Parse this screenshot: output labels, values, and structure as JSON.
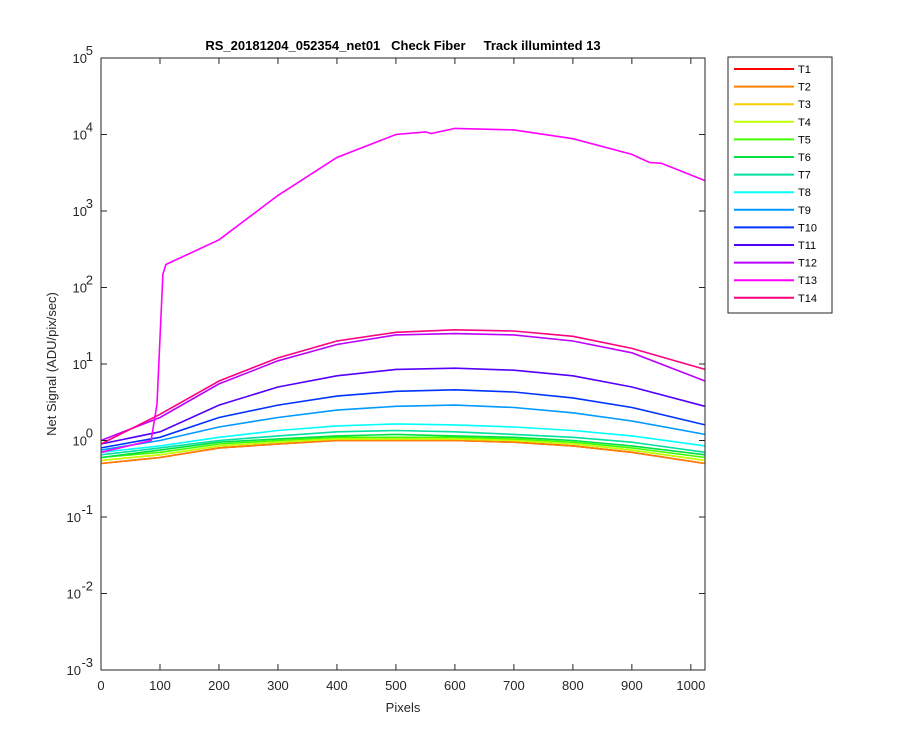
{
  "chart_data": {
    "type": "line",
    "title": "RS_20181204_052354_net01   Check Fiber     Track illuminted 13",
    "xlabel": "Pixels",
    "ylabel": "Net Signal (ADU/pix/sec)",
    "xlim": [
      0,
      1024
    ],
    "ylim": [
      0.001,
      100000
    ],
    "yscale": "log",
    "grid": false,
    "legend_position": "outside-right",
    "x_ticks": [
      0,
      100,
      200,
      300,
      400,
      500,
      600,
      700,
      800,
      900,
      1000
    ],
    "x_tick_labels": [
      "0",
      "100",
      "200",
      "300",
      "400",
      "500",
      "600",
      "700",
      "800",
      "900",
      "1000"
    ],
    "y_ticks": [
      0.001,
      0.01,
      0.1,
      1,
      10,
      100,
      1000,
      10000,
      100000
    ],
    "y_tick_exponents": [
      "-3",
      "-2",
      "-1",
      "0",
      "1",
      "2",
      "3",
      "4",
      "5"
    ],
    "y_tick_base": "10",
    "series": [
      {
        "name": "T1",
        "color": "#ff0000",
        "x": [
          0,
          100,
          200,
          300,
          400,
          500,
          600,
          700,
          800,
          900,
          1024
        ],
        "y": [
          0.5,
          0.6,
          0.8,
          0.9,
          1.0,
          1.0,
          1.0,
          0.95,
          0.85,
          0.7,
          0.5
        ]
      },
      {
        "name": "T2",
        "color": "#ff7f00",
        "x": [
          0,
          100,
          200,
          300,
          400,
          500,
          600,
          700,
          800,
          900,
          1024
        ],
        "y": [
          0.5,
          0.6,
          0.8,
          0.9,
          1.0,
          1.0,
          1.0,
          0.95,
          0.85,
          0.7,
          0.5
        ]
      },
      {
        "name": "T3",
        "color": "#ffcc00",
        "x": [
          0,
          100,
          200,
          300,
          400,
          500,
          600,
          700,
          800,
          900,
          1024
        ],
        "y": [
          0.55,
          0.65,
          0.85,
          0.95,
          1.05,
          1.05,
          1.05,
          1.0,
          0.9,
          0.75,
          0.55
        ]
      },
      {
        "name": "T4",
        "color": "#bfff00",
        "x": [
          0,
          100,
          200,
          300,
          400,
          500,
          600,
          700,
          800,
          900,
          1024
        ],
        "y": [
          0.55,
          0.65,
          0.85,
          0.95,
          1.05,
          1.05,
          1.05,
          1.0,
          0.9,
          0.75,
          0.55
        ]
      },
      {
        "name": "T5",
        "color": "#40ff00",
        "x": [
          0,
          100,
          200,
          300,
          400,
          500,
          600,
          700,
          800,
          900,
          1024
        ],
        "y": [
          0.6,
          0.7,
          0.9,
          1.0,
          1.1,
          1.1,
          1.1,
          1.05,
          0.95,
          0.8,
          0.6
        ]
      },
      {
        "name": "T6",
        "color": "#00e040",
        "x": [
          0,
          100,
          200,
          300,
          400,
          500,
          600,
          700,
          800,
          900,
          1024
        ],
        "y": [
          0.6,
          0.75,
          0.95,
          1.05,
          1.15,
          1.2,
          1.15,
          1.1,
          1.0,
          0.85,
          0.65
        ]
      },
      {
        "name": "T7",
        "color": "#00e0a0",
        "x": [
          0,
          100,
          200,
          300,
          400,
          500,
          600,
          700,
          800,
          900,
          1024
        ],
        "y": [
          0.65,
          0.8,
          1.0,
          1.15,
          1.3,
          1.35,
          1.3,
          1.2,
          1.1,
          0.95,
          0.7
        ]
      },
      {
        "name": "T8",
        "color": "#00ffff",
        "x": [
          0,
          100,
          200,
          300,
          400,
          500,
          600,
          700,
          800,
          900,
          1024
        ],
        "y": [
          0.7,
          0.85,
          1.1,
          1.35,
          1.55,
          1.65,
          1.6,
          1.5,
          1.35,
          1.15,
          0.85
        ]
      },
      {
        "name": "T9",
        "color": "#0099ff",
        "x": [
          0,
          100,
          200,
          300,
          400,
          500,
          600,
          700,
          800,
          900,
          1024
        ],
        "y": [
          0.75,
          1.0,
          1.5,
          2.0,
          2.5,
          2.8,
          2.9,
          2.7,
          2.3,
          1.8,
          1.2
        ]
      },
      {
        "name": "T10",
        "color": "#0033ff",
        "x": [
          0,
          100,
          200,
          300,
          400,
          500,
          600,
          700,
          800,
          900,
          1024
        ],
        "y": [
          0.8,
          1.1,
          2.0,
          2.9,
          3.8,
          4.4,
          4.6,
          4.3,
          3.6,
          2.7,
          1.6
        ]
      },
      {
        "name": "T11",
        "color": "#5500ff",
        "x": [
          0,
          100,
          200,
          300,
          400,
          500,
          600,
          700,
          800,
          900,
          1024
        ],
        "y": [
          0.9,
          1.3,
          2.9,
          5.0,
          7.0,
          8.5,
          8.8,
          8.3,
          7.0,
          5.0,
          2.8
        ]
      },
      {
        "name": "T12",
        "color": "#bb00ff",
        "x": [
          0,
          100,
          200,
          300,
          400,
          500,
          600,
          700,
          800,
          900,
          1024
        ],
        "y": [
          1.0,
          2.0,
          5.5,
          11,
          18,
          24,
          25,
          24,
          20,
          14,
          6
        ]
      },
      {
        "name": "T13",
        "color": "#ff00ff",
        "x": [
          0,
          85,
          95,
          105,
          110,
          200,
          300,
          400,
          500,
          550,
          560,
          600,
          700,
          800,
          900,
          930,
          950,
          1024
        ],
        "y": [
          0.7,
          1.0,
          3,
          150,
          200,
          420,
          1600,
          5000,
          10000,
          10800,
          10300,
          12000,
          11500,
          8800,
          5500,
          4300,
          4200,
          2500
        ]
      },
      {
        "name": "T14",
        "color": "#ff0080",
        "x": [
          0,
          100,
          200,
          300,
          400,
          500,
          600,
          700,
          800,
          900,
          1024
        ],
        "y": [
          0.9,
          2.2,
          6.0,
          12,
          20,
          26,
          28,
          27,
          23,
          16,
          8.5
        ]
      }
    ]
  }
}
